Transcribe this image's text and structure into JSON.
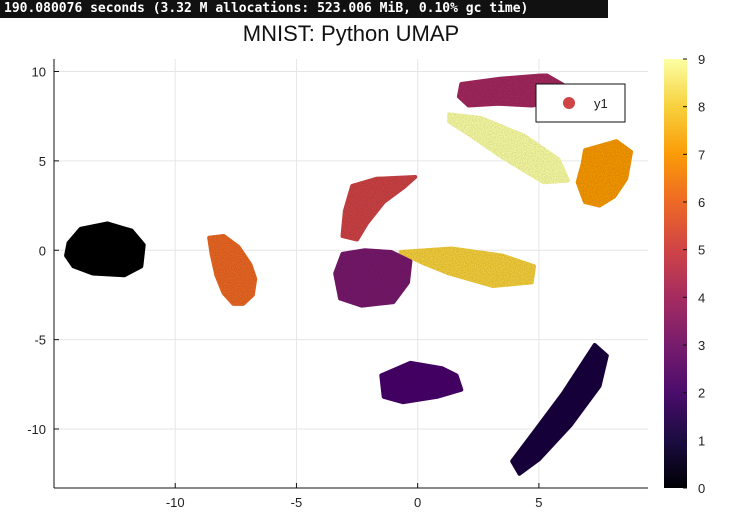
{
  "status": {
    "text": "190.080076 seconds (3.32 M allocations: 523.006 MiB, 0.10% gc time)"
  },
  "chart_data": {
    "type": "scatter",
    "title": "MNIST: Python UMAP",
    "xlabel": "",
    "ylabel": "",
    "xlim": [
      -15,
      9.5
    ],
    "ylim": [
      -13.3,
      10.7
    ],
    "xticks": [
      -10,
      -5,
      0,
      5
    ],
    "xtick_labels": [
      "-10",
      "-5",
      "0",
      "5"
    ],
    "yticks": [
      -10,
      -5,
      0,
      5,
      10
    ],
    "ytick_labels": [
      "-10",
      "-5",
      "0",
      "5",
      "10"
    ],
    "grid": true,
    "legend": {
      "entries": [
        "y1"
      ],
      "placement": "top-right"
    },
    "colorbar": {
      "min": 0,
      "max": 9,
      "ticks": [
        0,
        1,
        2,
        3,
        4,
        5,
        6,
        7,
        8,
        9
      ],
      "tick_labels": [
        "0",
        "1",
        "2",
        "3",
        "4",
        "5",
        "6",
        "7",
        "8",
        "9"
      ],
      "colormap": "inferno",
      "stops": [
        "#000004",
        "#1b0c41",
        "#4a0c6b",
        "#781c6d",
        "#a52c60",
        "#cf4446",
        "#ed6925",
        "#fb9b06",
        "#f7d13d",
        "#fcffa4"
      ]
    },
    "clusters": [
      {
        "label": 0,
        "shape": "polygon",
        "points": [
          [
            -14.4,
            0.4
          ],
          [
            -13.9,
            1.2
          ],
          [
            -12.8,
            1.5
          ],
          [
            -11.8,
            1.1
          ],
          [
            -11.3,
            0.3
          ],
          [
            -11.4,
            -0.9
          ],
          [
            -12.1,
            -1.4
          ],
          [
            -13.4,
            -1.3
          ],
          [
            -14.2,
            -0.9
          ],
          [
            -14.5,
            -0.3
          ]
        ]
      },
      {
        "label": 6,
        "shape": "polygon",
        "points": [
          [
            -8.6,
            0.7
          ],
          [
            -8.0,
            0.8
          ],
          [
            -7.4,
            0.2
          ],
          [
            -6.9,
            -0.8
          ],
          [
            -6.7,
            -1.6
          ],
          [
            -6.8,
            -2.5
          ],
          [
            -7.2,
            -3.0
          ],
          [
            -7.6,
            -3.0
          ],
          [
            -8.0,
            -2.4
          ],
          [
            -8.3,
            -1.4
          ],
          [
            -8.5,
            -0.2
          ]
        ]
      },
      {
        "label": 5,
        "shape": "polygon",
        "points": [
          [
            -2.7,
            3.6
          ],
          [
            -1.7,
            4.0
          ],
          [
            -0.1,
            4.1
          ],
          [
            -0.6,
            3.5
          ],
          [
            -1.4,
            2.7
          ],
          [
            -2.1,
            1.5
          ],
          [
            -2.5,
            0.6
          ],
          [
            -3.1,
            0.8
          ],
          [
            -3.0,
            2.2
          ]
        ]
      },
      {
        "label": 3,
        "shape": "polygon",
        "points": [
          [
            -3.1,
            -0.2
          ],
          [
            -2.2,
            0.0
          ],
          [
            -1.1,
            -0.1
          ],
          [
            -0.3,
            -0.6
          ],
          [
            -0.4,
            -1.8
          ],
          [
            -1.0,
            -2.9
          ],
          [
            -2.3,
            -3.1
          ],
          [
            -3.2,
            -2.7
          ],
          [
            -3.4,
            -1.3
          ]
        ]
      },
      {
        "label": 8,
        "shape": "polygon",
        "points": [
          [
            -0.7,
            -0.1
          ],
          [
            1.4,
            0.1
          ],
          [
            3.5,
            -0.3
          ],
          [
            4.8,
            -0.9
          ],
          [
            4.7,
            -1.8
          ],
          [
            3.1,
            -2.0
          ],
          [
            1.3,
            -1.3
          ],
          [
            0.2,
            -0.7
          ]
        ]
      },
      {
        "label": 2,
        "shape": "polygon",
        "points": [
          [
            -1.5,
            -7.0
          ],
          [
            -0.3,
            -6.3
          ],
          [
            1.0,
            -6.6
          ],
          [
            1.6,
            -7.0
          ],
          [
            1.8,
            -7.8
          ],
          [
            0.8,
            -8.2
          ],
          [
            -0.6,
            -8.5
          ],
          [
            -1.4,
            -8.2
          ]
        ]
      },
      {
        "label": 1,
        "shape": "polygon",
        "points": [
          [
            7.3,
            -5.3
          ],
          [
            7.8,
            -5.9
          ],
          [
            7.5,
            -7.6
          ],
          [
            6.3,
            -9.8
          ],
          [
            5.0,
            -11.7
          ],
          [
            4.2,
            -12.5
          ],
          [
            3.9,
            -11.8
          ],
          [
            4.9,
            -10.0
          ],
          [
            6.0,
            -8.0
          ]
        ]
      },
      {
        "label": 4,
        "shape": "polygon",
        "points": [
          [
            1.8,
            9.3
          ],
          [
            3.4,
            9.6
          ],
          [
            5.3,
            9.8
          ],
          [
            6.2,
            9.1
          ],
          [
            5.8,
            8.3
          ],
          [
            4.7,
            8.1
          ],
          [
            3.3,
            8.2
          ],
          [
            2.1,
            8.1
          ],
          [
            1.7,
            8.6
          ]
        ]
      },
      {
        "label": 9,
        "shape": "polygon",
        "points": [
          [
            1.3,
            7.6
          ],
          [
            2.6,
            7.4
          ],
          [
            4.4,
            6.4
          ],
          [
            5.8,
            5.1
          ],
          [
            6.2,
            3.9
          ],
          [
            5.2,
            3.8
          ],
          [
            3.5,
            5.2
          ],
          [
            2.1,
            6.5
          ],
          [
            1.3,
            7.2
          ]
        ]
      },
      {
        "label": 7,
        "shape": "polygon",
        "points": [
          [
            6.9,
            5.6
          ],
          [
            8.2,
            6.1
          ],
          [
            8.8,
            5.5
          ],
          [
            8.6,
            4.0
          ],
          [
            8.1,
            3.0
          ],
          [
            7.5,
            2.5
          ],
          [
            6.9,
            2.7
          ],
          [
            6.6,
            3.8
          ],
          [
            6.8,
            4.8
          ]
        ]
      }
    ]
  }
}
